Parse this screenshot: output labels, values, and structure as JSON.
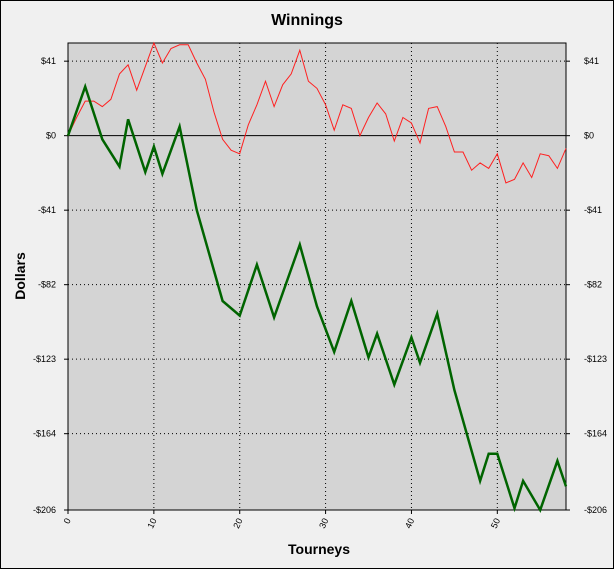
{
  "chart_data": {
    "type": "line",
    "title": "Winnings",
    "xlabel": "Tourneys",
    "ylabel": "Dollars",
    "xlim": [
      0,
      58
    ],
    "ylim": [
      -206,
      51
    ],
    "x_ticks": [
      0,
      10,
      20,
      30,
      40,
      50
    ],
    "x_tick_labels": [
      "0",
      "10",
      "20",
      "30",
      "40",
      "50"
    ],
    "y_ticks": [
      41,
      0,
      -41,
      -82,
      -123,
      -164,
      -206
    ],
    "y_tick_labels": [
      "$41",
      "$0",
      "-$41",
      "-$82",
      "-$123",
      "-$164",
      "-$206"
    ],
    "grid": true,
    "background_color": "#d4d4d4",
    "series": [
      {
        "color": "#ff2020",
        "line_width": 1,
        "x": [
          0,
          1,
          2,
          3,
          4,
          5,
          6,
          7,
          8,
          9,
          10,
          11,
          12,
          13,
          14,
          15,
          16,
          17,
          18,
          19,
          20,
          21,
          22,
          23,
          24,
          25,
          26,
          27,
          28,
          29,
          30,
          31,
          32,
          33,
          34,
          35,
          36,
          37,
          38,
          39,
          40,
          41,
          42,
          43,
          44,
          45,
          46,
          47,
          48,
          49,
          50,
          51,
          52,
          53,
          54,
          55,
          56,
          57,
          58
        ],
        "values": [
          0,
          10,
          19,
          19,
          16,
          20,
          34,
          39,
          25,
          38,
          51,
          40,
          48,
          50,
          50,
          40,
          31,
          13,
          -2,
          -8,
          -10,
          6,
          17,
          30,
          16,
          28,
          34,
          47,
          30,
          26,
          17,
          3,
          17,
          15,
          0,
          10,
          18,
          12,
          -3,
          10,
          7,
          -4,
          15,
          16,
          5,
          -9,
          -9,
          -19,
          -15,
          -18,
          -10,
          -26,
          -24,
          -15,
          -23,
          -10,
          -11,
          -18,
          -7
        ]
      },
      {
        "color": "#006400",
        "line_width": 2.5,
        "x": [
          0,
          2,
          4,
          6,
          7,
          9,
          10,
          11,
          13,
          15,
          18,
          20,
          22,
          24,
          27,
          29,
          31,
          33,
          35,
          36,
          38,
          40,
          41,
          43,
          45,
          48,
          49,
          50,
          52,
          53,
          55,
          57,
          58
        ],
        "values": [
          0,
          27,
          -2,
          -17,
          9,
          -20,
          -6,
          -21,
          5,
          -41,
          -91,
          -99,
          -71,
          -100,
          -60,
          -94,
          -119,
          -91,
          -122,
          -109,
          -137,
          -111,
          -125,
          -98,
          -140,
          -190,
          -175,
          -175,
          -205,
          -190,
          -206,
          -179,
          -193
        ]
      }
    ]
  }
}
